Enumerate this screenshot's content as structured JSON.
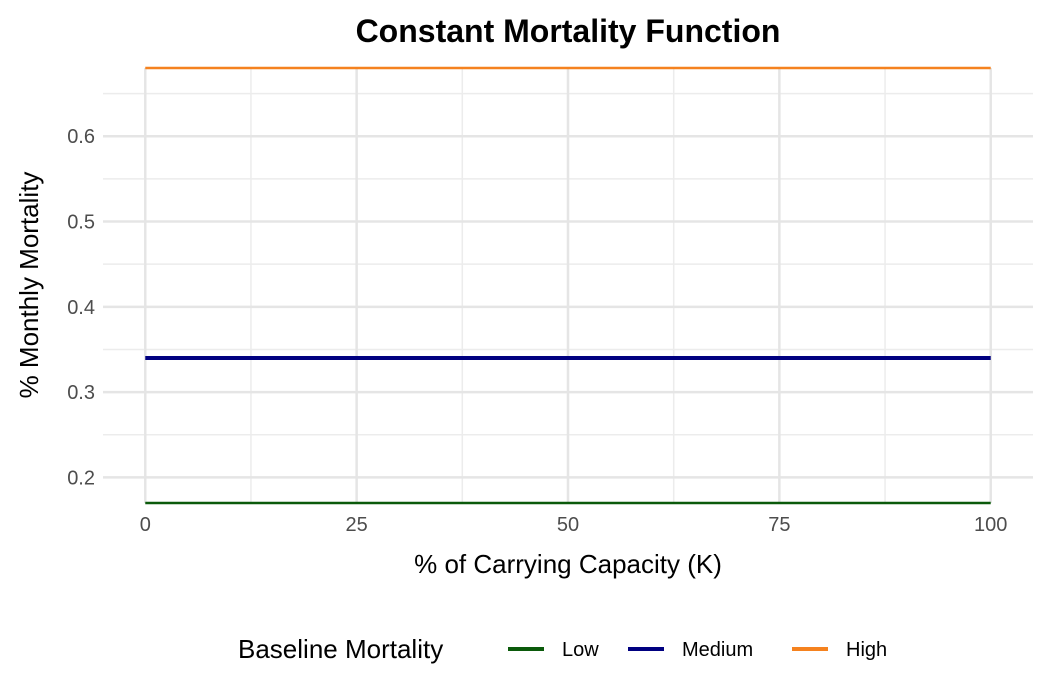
{
  "chart_data": {
    "type": "line",
    "title": "Constant Mortality Function",
    "xlabel": "% of Carrying Capacity (K)",
    "ylabel": "% Monthly Mortality",
    "xlim": [
      0,
      100
    ],
    "ylim": [
      0.17,
      0.68
    ],
    "x_ticks": [
      "0",
      "25",
      "50",
      "75",
      "100"
    ],
    "y_ticks": [
      "0.2",
      "0.3",
      "0.4",
      "0.5",
      "0.6"
    ],
    "grid": true,
    "legend": {
      "title": "Baseline Mortality",
      "position": "bottom"
    },
    "series": [
      {
        "name": "Low",
        "color": "#0b5a0b",
        "x": [
          0,
          100
        ],
        "y": [
          0.17,
          0.17
        ]
      },
      {
        "name": "Medium",
        "color": "#000080",
        "x": [
          0,
          100
        ],
        "y": [
          0.34,
          0.34
        ]
      },
      {
        "name": "High",
        "color": "#f5821f",
        "x": [
          0,
          100
        ],
        "y": [
          0.68,
          0.68
        ]
      }
    ]
  }
}
